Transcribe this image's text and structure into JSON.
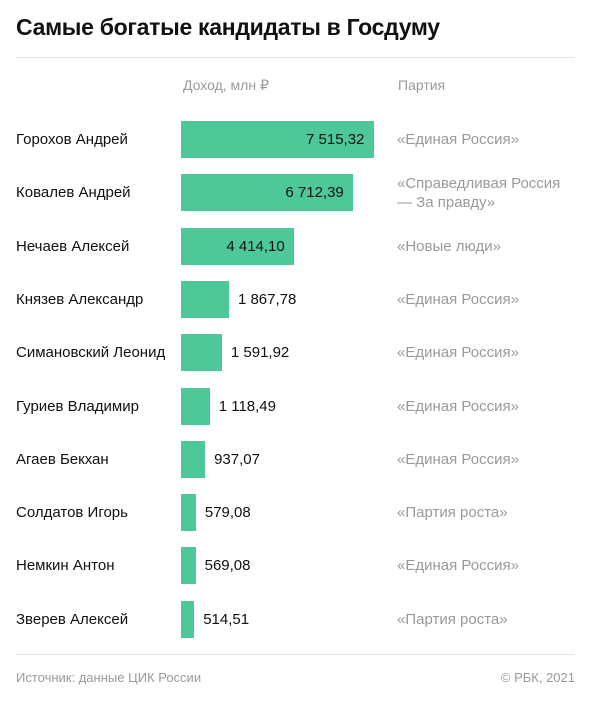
{
  "title": "Самые богатые кандидаты в Госдуму",
  "headers": {
    "income": "Доход, млн ₽",
    "party": "Партия"
  },
  "colors": {
    "bar": "#4fc899",
    "text": "#111111",
    "muted": "#9a9a9a",
    "rule": "#e3e3e3"
  },
  "chart_data": {
    "type": "bar",
    "orientation": "horizontal",
    "title": "Самые богатые кандидаты в Госдуму",
    "value_label": "Доход, млн ₽",
    "categories": [
      "Горохов Андрей",
      "Ковалев Андрей",
      "Нечаев Алексей",
      "Князев Александр",
      "Симановский Леонид",
      "Гуриев Владимир",
      "Агаев Бекхан",
      "Солдатов Игорь",
      "Немкин Антон",
      "Зверев Алексей"
    ],
    "values": [
      7515.32,
      6712.39,
      4414.1,
      1867.78,
      1591.92,
      1118.49,
      937.07,
      579.08,
      569.08,
      514.51
    ],
    "value_labels": [
      "7 515,32",
      "6 712,39",
      "4 414,10",
      "1 867,78",
      "1 591,92",
      "1 118,49",
      "937,07",
      "579,08",
      "569,08",
      "514,51"
    ],
    "parties": [
      "«Единая Россия»",
      "«Справедливая Россия — За правду»",
      "«Новые люди»",
      "«Единая Россия»",
      "«Единая Россия»",
      "«Единая Россия»",
      "«Единая Россия»",
      "«Партия роста»",
      "«Единая Россия»",
      "«Партия роста»"
    ],
    "xlim": [
      0,
      7515.32
    ],
    "grid": false,
    "legend": "none"
  },
  "footer": {
    "source": "Источник:  данные ЦИК России",
    "copyright": "©  РБК, 2021"
  }
}
